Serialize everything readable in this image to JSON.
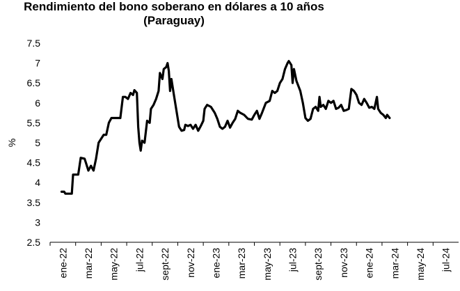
{
  "chart_data": {
    "type": "line",
    "title": "Rendimiento del bono soberano en dólares a 10 años",
    "subtitle": "(Paraguay)",
    "xlabel": "",
    "ylabel": "%",
    "ylim": [
      2.5,
      7.5
    ],
    "yticks": [
      "2.5",
      "3",
      "3.5",
      "4",
      "4.5",
      "5",
      "5.5",
      "6",
      "6.5",
      "7",
      "7.5"
    ],
    "xticks": [
      "ene-22",
      "mar-22",
      "may-22",
      "jul-22",
      "sept-22",
      "nov-22",
      "ene-23",
      "mar-23",
      "may-23",
      "jul-23",
      "sept-23",
      "nov-23",
      "ene-24",
      "mar-24",
      "may-24",
      "jul-24"
    ],
    "grid": false,
    "series": [
      {
        "color": "#000000",
        "points": [
          [
            0.45,
            3.77
          ],
          [
            0.55,
            3.77
          ],
          [
            0.6,
            3.72
          ],
          [
            0.85,
            3.72
          ],
          [
            0.9,
            4.2
          ],
          [
            1.1,
            4.2
          ],
          [
            1.2,
            4.62
          ],
          [
            1.35,
            4.6
          ],
          [
            1.4,
            4.5
          ],
          [
            1.5,
            4.3
          ],
          [
            1.6,
            4.42
          ],
          [
            1.7,
            4.3
          ],
          [
            1.8,
            4.6
          ],
          [
            1.9,
            5.0
          ],
          [
            2.0,
            5.1
          ],
          [
            2.1,
            5.2
          ],
          [
            2.2,
            5.2
          ],
          [
            2.3,
            5.5
          ],
          [
            2.4,
            5.62
          ],
          [
            2.5,
            5.62
          ],
          [
            2.6,
            5.62
          ],
          [
            2.75,
            5.62
          ],
          [
            2.85,
            6.15
          ],
          [
            2.95,
            6.15
          ],
          [
            3.05,
            6.1
          ],
          [
            3.15,
            6.25
          ],
          [
            3.25,
            6.2
          ],
          [
            3.3,
            6.32
          ],
          [
            3.4,
            6.25
          ],
          [
            3.45,
            5.4
          ],
          [
            3.5,
            5.0
          ],
          [
            3.55,
            4.8
          ],
          [
            3.6,
            5.05
          ],
          [
            3.7,
            5.0
          ],
          [
            3.8,
            5.55
          ],
          [
            3.9,
            5.5
          ],
          [
            3.95,
            5.85
          ],
          [
            4.05,
            5.95
          ],
          [
            4.15,
            6.1
          ],
          [
            4.25,
            6.3
          ],
          [
            4.3,
            6.75
          ],
          [
            4.4,
            6.6
          ],
          [
            4.45,
            6.85
          ],
          [
            4.55,
            6.9
          ],
          [
            4.6,
            7.0
          ],
          [
            4.65,
            6.8
          ],
          [
            4.7,
            6.3
          ],
          [
            4.75,
            6.6
          ],
          [
            4.85,
            6.2
          ],
          [
            4.95,
            5.8
          ],
          [
            5.05,
            5.4
          ],
          [
            5.15,
            5.3
          ],
          [
            5.25,
            5.32
          ],
          [
            5.3,
            5.45
          ],
          [
            5.4,
            5.42
          ],
          [
            5.5,
            5.45
          ],
          [
            5.6,
            5.35
          ],
          [
            5.7,
            5.45
          ],
          [
            5.8,
            5.3
          ],
          [
            5.9,
            5.42
          ],
          [
            6.0,
            5.55
          ],
          [
            6.05,
            5.85
          ],
          [
            6.15,
            5.95
          ],
          [
            6.3,
            5.9
          ],
          [
            6.45,
            5.75
          ],
          [
            6.55,
            5.6
          ],
          [
            6.65,
            5.4
          ],
          [
            6.75,
            5.35
          ],
          [
            6.85,
            5.4
          ],
          [
            6.95,
            5.55
          ],
          [
            7.05,
            5.38
          ],
          [
            7.15,
            5.5
          ],
          [
            7.25,
            5.6
          ],
          [
            7.35,
            5.8
          ],
          [
            7.45,
            5.75
          ],
          [
            7.6,
            5.7
          ],
          [
            7.75,
            5.6
          ],
          [
            7.9,
            5.58
          ],
          [
            8.0,
            5.7
          ],
          [
            8.1,
            5.8
          ],
          [
            8.2,
            5.6
          ],
          [
            8.3,
            5.75
          ],
          [
            8.45,
            6.0
          ],
          [
            8.6,
            6.05
          ],
          [
            8.7,
            6.3
          ],
          [
            8.8,
            6.25
          ],
          [
            8.9,
            6.3
          ],
          [
            9.0,
            6.5
          ],
          [
            9.1,
            6.6
          ],
          [
            9.2,
            6.85
          ],
          [
            9.3,
            7.0
          ],
          [
            9.35,
            7.05
          ],
          [
            9.45,
            6.95
          ],
          [
            9.5,
            6.5
          ],
          [
            9.55,
            6.85
          ],
          [
            9.65,
            6.55
          ],
          [
            9.8,
            6.3
          ],
          [
            9.9,
            6.0
          ],
          [
            10.0,
            5.62
          ],
          [
            10.1,
            5.55
          ],
          [
            10.2,
            5.6
          ],
          [
            10.3,
            5.85
          ],
          [
            10.4,
            5.9
          ],
          [
            10.5,
            5.8
          ],
          [
            10.55,
            6.15
          ],
          [
            10.6,
            5.9
          ],
          [
            10.7,
            5.95
          ],
          [
            10.8,
            5.85
          ],
          [
            10.9,
            6.05
          ],
          [
            11.0,
            6.0
          ],
          [
            11.1,
            6.05
          ],
          [
            11.2,
            5.85
          ],
          [
            11.3,
            5.88
          ],
          [
            11.4,
            5.95
          ],
          [
            11.5,
            5.8
          ],
          [
            11.6,
            5.82
          ],
          [
            11.7,
            5.85
          ],
          [
            11.8,
            6.35
          ],
          [
            11.9,
            6.3
          ],
          [
            12.0,
            6.2
          ],
          [
            12.1,
            6.0
          ],
          [
            12.2,
            5.95
          ],
          [
            12.3,
            6.1
          ],
          [
            12.4,
            6.0
          ],
          [
            12.5,
            5.88
          ],
          [
            12.6,
            5.9
          ],
          [
            12.7,
            5.85
          ],
          [
            12.8,
            6.15
          ],
          [
            12.85,
            5.85
          ],
          [
            12.95,
            5.75
          ],
          [
            13.05,
            5.7
          ],
          [
            13.15,
            5.62
          ],
          [
            13.2,
            5.7
          ],
          [
            13.3,
            5.62
          ]
        ]
      }
    ]
  }
}
